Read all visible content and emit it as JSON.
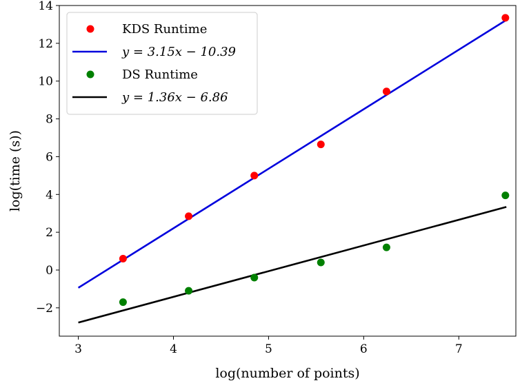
{
  "chart_data": {
    "type": "scatter",
    "xlabel": "log(number of points)",
    "ylabel": "log(time (s))",
    "xlim": [
      2.8,
      7.6
    ],
    "ylim": [
      -3.5,
      14
    ],
    "xticks": [
      3,
      4,
      5,
      6,
      7
    ],
    "yticks": [
      -2,
      0,
      2,
      4,
      6,
      8,
      10,
      12,
      14
    ],
    "xtick_labels": [
      "3",
      "4",
      "5",
      "6",
      "7"
    ],
    "ytick_labels": [
      "−2",
      "0",
      "2",
      "4",
      "6",
      "8",
      "10",
      "12",
      "14"
    ],
    "grid": false,
    "legend_position": "top-left",
    "series": [
      {
        "name": "KDS Runtime",
        "kind": "scatter",
        "color": "#ff0000",
        "x": [
          3.47,
          4.16,
          4.85,
          5.55,
          6.24,
          7.49
        ],
        "y": [
          0.6,
          2.85,
          5.0,
          6.65,
          9.45,
          13.35
        ]
      },
      {
        "name": "y = 3.15x − 10.39",
        "kind": "line",
        "color": "#0000dd",
        "slope": 3.15,
        "intercept": -10.39,
        "x_range": [
          3.0,
          7.5
        ]
      },
      {
        "name": "DS Runtime",
        "kind": "scatter",
        "color": "#008000",
        "x": [
          3.47,
          4.16,
          4.85,
          5.55,
          6.24,
          7.49
        ],
        "y": [
          -1.7,
          -1.1,
          -0.4,
          0.4,
          1.2,
          3.95
        ]
      },
      {
        "name": "y = 1.36x − 6.86",
        "kind": "line",
        "color": "#000000",
        "slope": 1.36,
        "intercept": -6.86,
        "x_range": [
          3.0,
          7.5
        ]
      }
    ]
  }
}
